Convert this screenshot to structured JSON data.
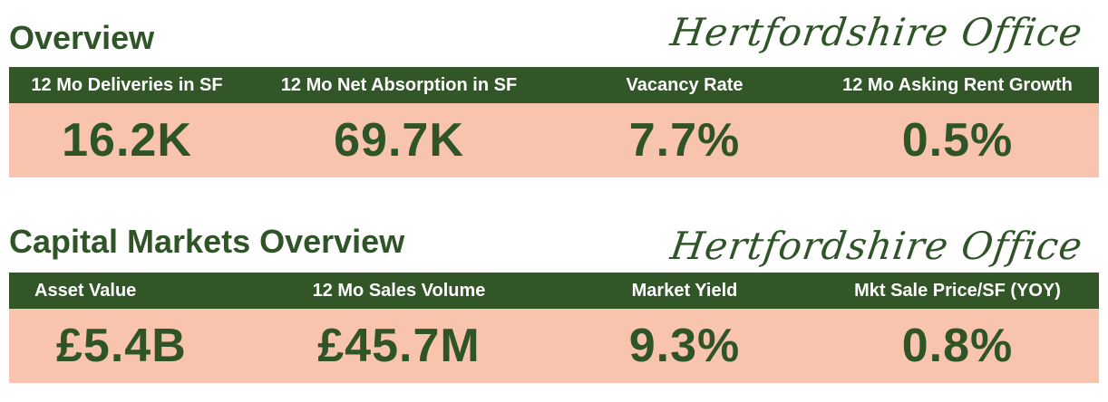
{
  "overview": {
    "title": "Overview",
    "brand": "Hertfordshire Office",
    "metrics": [
      {
        "label": "12 Mo Deliveries in SF",
        "value": "16.2K"
      },
      {
        "label": "12 Mo Net Absorption in SF",
        "value": "69.7K"
      },
      {
        "label": "Vacancy Rate",
        "value": "7.7%"
      },
      {
        "label": "12 Mo Asking Rent Growth",
        "value": "0.5%"
      }
    ]
  },
  "capital_markets": {
    "title": "Capital Markets Overview",
    "brand": "Hertfordshire Office",
    "metrics": [
      {
        "label": "Asset Value",
        "value": "£5.4B"
      },
      {
        "label": "12 Mo Sales Volume",
        "value": "£45.7M"
      },
      {
        "label": "Market Yield",
        "value": "9.3%"
      },
      {
        "label": "Mkt Sale Price/SF (YOY)",
        "value": "0.8%"
      }
    ]
  },
  "colors": {
    "dark_green": "#335629",
    "text_green": "#2f5428",
    "salmon": "#f8c4ae",
    "white": "#ffffff"
  }
}
